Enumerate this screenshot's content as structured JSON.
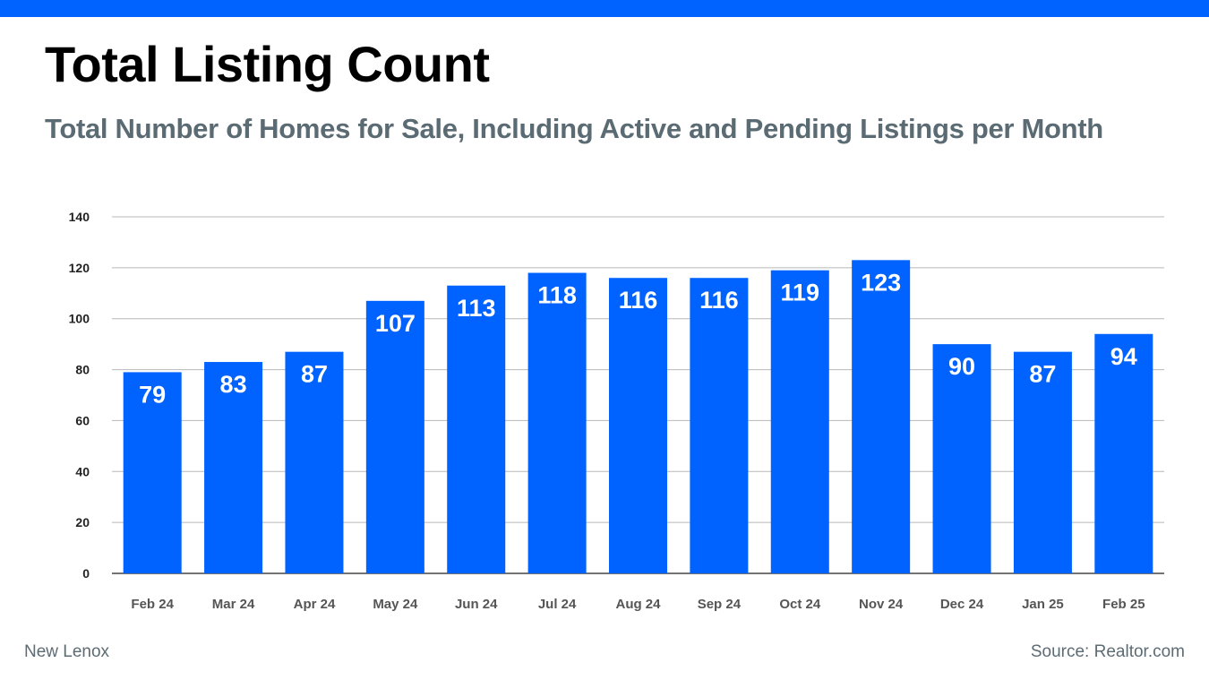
{
  "title": "Total Listing Count",
  "subtitle": "Total Number of Homes for Sale, Including Active and Pending Listings per Month",
  "footer": {
    "location": "New Lenox",
    "source": "Source: Realtor.com"
  },
  "colors": {
    "accent": "#0062ff",
    "bar": "#0062ff",
    "subtitle": "#5b6b73",
    "grid": "#b8b8b8"
  },
  "chart_data": {
    "type": "bar",
    "categories": [
      "Feb 24",
      "Mar 24",
      "Apr 24",
      "May 24",
      "Jun 24",
      "Jul 24",
      "Aug 24",
      "Sep 24",
      "Oct 24",
      "Nov 24",
      "Dec 24",
      "Jan 25",
      "Feb 25"
    ],
    "values": [
      79,
      83,
      87,
      107,
      113,
      118,
      116,
      116,
      119,
      123,
      90,
      87,
      94
    ],
    "ylim": [
      0,
      140
    ],
    "yticks": [
      0,
      20,
      40,
      60,
      80,
      100,
      120,
      140
    ],
    "grid": true,
    "data_labels": "inside-top"
  }
}
